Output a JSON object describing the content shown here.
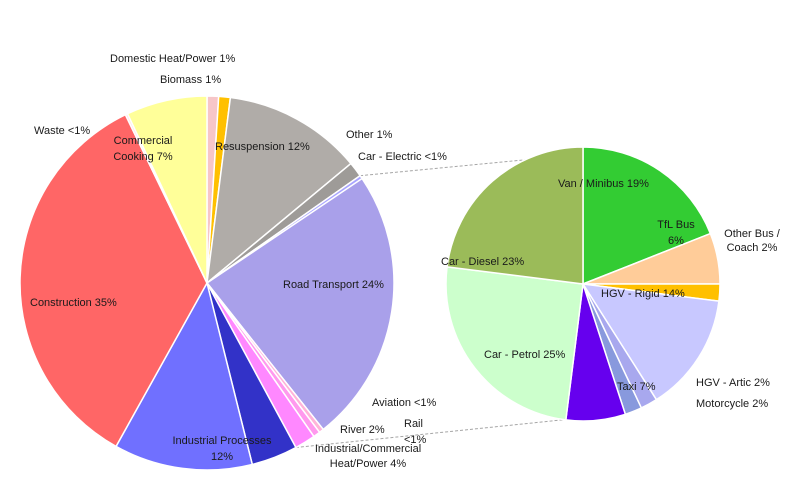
{
  "chart_data": [
    {
      "type": "pie",
      "slices": [
        {
          "name": "Domestic Heat/Power 1%",
          "value": 1,
          "color": "#f7c6c8"
        },
        {
          "name": "Biomass 1%",
          "value": 1,
          "color": "#ffc000"
        },
        {
          "name": "Resuspension 12%",
          "value": 12,
          "color": "#b0aca8"
        },
        {
          "name": "Other 1%",
          "value": 1.3,
          "color": "#9e9b98"
        },
        {
          "name": "Car - Electric <1%",
          "value": 0.3,
          "color": "#a8a4ff"
        },
        {
          "name": "Road Transport 24%",
          "value": 23.8,
          "color": "#a9a0ea"
        },
        {
          "name": "Aviation <1%",
          "value": 0.4,
          "color": "#ffb3d9"
        },
        {
          "name": "Rail <1%",
          "value": 0.6,
          "color": "#ff99ee"
        },
        {
          "name": "River 2%",
          "value": 1.8,
          "color": "#ff88ff"
        },
        {
          "name": "Industrial/Commercial Heat/Power 4%",
          "value": 4,
          "color": "#3232c8"
        },
        {
          "name": "Industrial Processes 12%",
          "value": 12,
          "color": "#7070ff"
        },
        {
          "name": "Construction 35%",
          "value": 34.8,
          "color": "#ff6666"
        },
        {
          "name": "Waste <1%",
          "value": 0.2,
          "color": "#ffe6e6"
        },
        {
          "name": "Commercial Cooking 7%",
          "value": 7,
          "color": "#ffff99"
        }
      ]
    },
    {
      "type": "pie",
      "slices": [
        {
          "name": "Van / Minibus 19%",
          "value": 19,
          "color": "#33cc33"
        },
        {
          "name": "TfL Bus 6%",
          "value": 6,
          "color": "#ffcc99"
        },
        {
          "name": "Other Bus / Coach 2%",
          "value": 2,
          "color": "#ffc000"
        },
        {
          "name": "HGV - Rigid 14%",
          "value": 14,
          "color": "#c8c8ff"
        },
        {
          "name": "HGV - Artic 2%",
          "value": 2,
          "color": "#a8a8ee"
        },
        {
          "name": "Motorcycle 2%",
          "value": 2,
          "color": "#8899dd"
        },
        {
          "name": "Taxi 7%",
          "value": 7,
          "color": "#6600ee"
        },
        {
          "name": "Car - Petrol 25%",
          "value": 25,
          "color": "#ccffcc"
        },
        {
          "name": "Car - Diesel 23%",
          "value": 23,
          "color": "#9bbb59"
        }
      ]
    }
  ]
}
